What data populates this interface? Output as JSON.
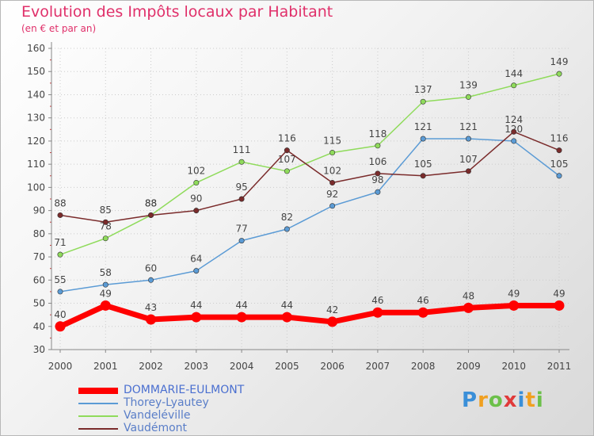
{
  "colors": {
    "title": "#e0306a",
    "axis": "#888888",
    "grid": "#cccccc",
    "text": "#444444"
  },
  "chart_data": {
    "type": "line",
    "title": "Evolution des Impôts locaux par Habitant",
    "subtitle": "(en € et par an)",
    "xlabel": "",
    "ylabel": "",
    "ylim": [
      30,
      160
    ],
    "yticks": [
      30,
      40,
      50,
      60,
      70,
      80,
      90,
      100,
      110,
      120,
      130,
      140,
      150,
      160
    ],
    "categories": [
      "2000",
      "2001",
      "2002",
      "2003",
      "2004",
      "2005",
      "2006",
      "2007",
      "2008",
      "2009",
      "2010",
      "2011"
    ],
    "grid": true,
    "legend_position": "bottom-left",
    "series": [
      {
        "name": "DOMMARIE-EULMONT",
        "color": "#ff0000",
        "emphasis": true,
        "values": [
          40,
          49,
          43,
          44,
          44,
          44,
          42,
          46,
          46,
          48,
          49,
          49
        ]
      },
      {
        "name": "Thorey-Lyautey",
        "color": "#5b9bd5",
        "emphasis": false,
        "values": [
          55,
          58,
          60,
          64,
          77,
          82,
          92,
          98,
          121,
          121,
          120,
          105
        ]
      },
      {
        "name": "Vandeléville",
        "color": "#8fdb5b",
        "emphasis": false,
        "values": [
          71,
          78,
          88,
          102,
          111,
          107,
          115,
          118,
          137,
          139,
          144,
          149
        ]
      },
      {
        "name": "Vaudémont",
        "color": "#7a2b2b",
        "emphasis": false,
        "values": [
          88,
          85,
          88,
          90,
          95,
          116,
          102,
          106,
          105,
          107,
          124,
          116
        ]
      }
    ]
  },
  "logo": {
    "letters": [
      "P",
      "r",
      "o",
      "x",
      "i",
      "t",
      "i"
    ],
    "colors": [
      "#3a8fd8",
      "#f0a020",
      "#6cc04a",
      "#e03a3a",
      "#3a8fd8",
      "#f0a020",
      "#6cc04a"
    ]
  }
}
